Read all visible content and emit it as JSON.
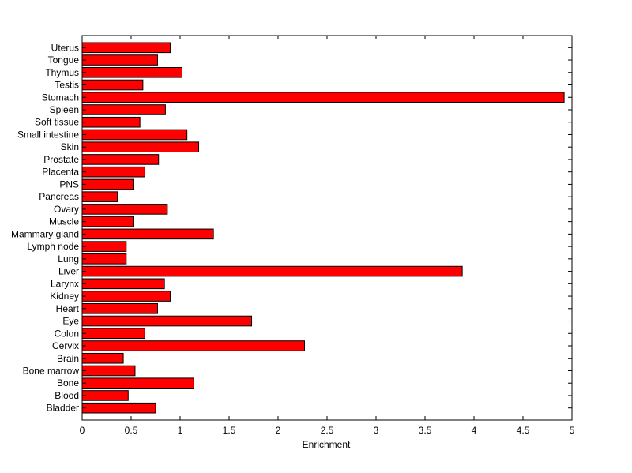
{
  "chart_data": {
    "type": "bar",
    "orientation": "horizontal",
    "title": "",
    "xlabel": "Enrichment",
    "ylabel": "",
    "xlim": [
      0,
      5
    ],
    "xticks": [
      0,
      0.5,
      1,
      1.5,
      2,
      2.5,
      3,
      3.5,
      4,
      4.5,
      5
    ],
    "xtick_labels": [
      "0",
      "0.5",
      "1",
      "1.5",
      "2",
      "2.5",
      "3",
      "3.5",
      "4",
      "4.5",
      "5"
    ],
    "grid": false,
    "legend": "none",
    "categories": [
      "Bladder",
      "Blood",
      "Bone",
      "Bone marrow",
      "Brain",
      "Cervix",
      "Colon",
      "Eye",
      "Heart",
      "Kidney",
      "Larynx",
      "Liver",
      "Lung",
      "Lymph node",
      "Mammary gland",
      "Muscle",
      "Ovary",
      "Pancreas",
      "PNS",
      "Placenta",
      "Prostate",
      "Skin",
      "Small intestine",
      "Soft tissue",
      "Spleen",
      "Stomach",
      "Testis",
      "Thymus",
      "Tongue",
      "Uterus"
    ],
    "values": [
      0.75,
      0.47,
      1.14,
      0.54,
      0.42,
      2.27,
      0.64,
      1.73,
      0.77,
      0.9,
      0.84,
      3.88,
      0.45,
      0.45,
      1.34,
      0.52,
      0.87,
      0.36,
      0.52,
      0.64,
      0.78,
      1.19,
      1.07,
      0.59,
      0.85,
      4.92,
      0.62,
      1.02,
      0.77,
      0.9
    ],
    "bar_color": "#ff0000",
    "bar_edge_color": "#000000"
  }
}
